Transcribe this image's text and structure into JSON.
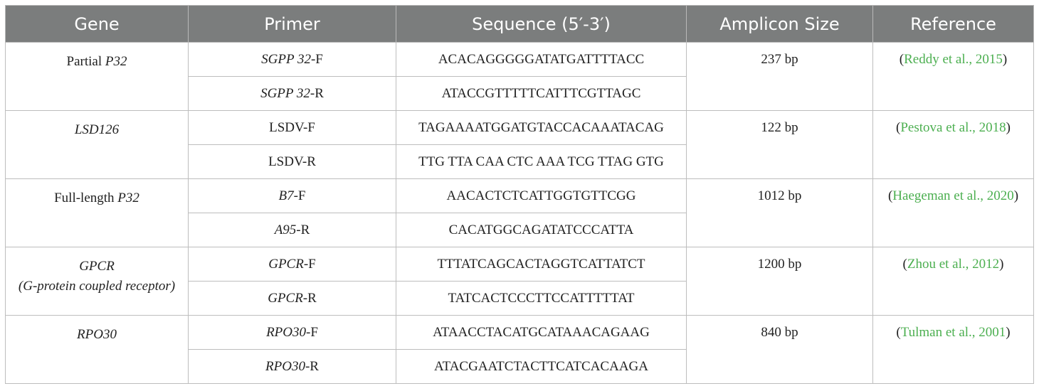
{
  "headers": [
    "Gene",
    "Primer",
    "Sequence (5′-3′)",
    "Amplicon Size",
    "Reference"
  ],
  "groups": [
    {
      "gene_plain": "Partial ",
      "gene_italic": "P32",
      "primers": [
        {
          "italic": "SGPP 32",
          "suffix": "-F",
          "sequence": "ACACAGGGGGATATGATTTTACC"
        },
        {
          "italic": "SGPP 32",
          "suffix": "-R",
          "sequence": "ATACCGTTTTTCATTTCGTTAGC"
        }
      ],
      "amplicon": "237 bp",
      "ref_open": "(",
      "ref_link": "Reddy et al., 2015",
      "ref_close": ")"
    },
    {
      "gene_plain": "",
      "gene_italic": "LSD126",
      "primers": [
        {
          "plain": "LSDV-F",
          "sequence": "TAGAAAATGGATGTACCACAAATACAG"
        },
        {
          "plain": "LSDV-R",
          "sequence": "TTG TTA CAA CTC AAA TCG TTAG GTG"
        }
      ],
      "amplicon": "122 bp",
      "ref_open": "(",
      "ref_link": "Pestova et al., 2018",
      "ref_close": ")"
    },
    {
      "gene_plain": "Full-length ",
      "gene_italic": "P32",
      "primers": [
        {
          "italic": "B7",
          "suffix": "-F",
          "sequence": "AACACTCTCATTGGTGTTCGG"
        },
        {
          "italic": "A95",
          "suffix": "-R",
          "sequence": "CACATGGCAGATATCCCATTA"
        }
      ],
      "amplicon": "1012 bp",
      "ref_open": "(",
      "ref_link": "Haegeman et al., 2020",
      "ref_close": ")"
    },
    {
      "gene_italic": "GPCR",
      "gene_italic_line2": "(G-protein coupled receptor)",
      "primers": [
        {
          "italic": "GPCR",
          "suffix": "-F",
          "sequence": "TTTATCAGCACTAGGTCATTATCT"
        },
        {
          "italic": "GPCR",
          "suffix": "-R",
          "sequence": "TATCACTCCCTTCCATTTTTAT"
        }
      ],
      "amplicon": "1200 bp",
      "ref_open": "(",
      "ref_link": "Zhou et al., 2012",
      "ref_close": ")"
    },
    {
      "gene_plain": "",
      "gene_italic": "RPO30",
      "primers": [
        {
          "italic": "RPO30",
          "suffix": "-F",
          "sequence": "ATAACCTACATGCATAAACAGAAG"
        },
        {
          "italic": "RPO30",
          "suffix": "-R",
          "sequence": "ATACGAATCTACTTCATCACAAGA"
        }
      ],
      "amplicon": "840 bp",
      "ref_open": "(",
      "ref_link": "Tulman et al., 2001",
      "ref_close": ")"
    }
  ]
}
